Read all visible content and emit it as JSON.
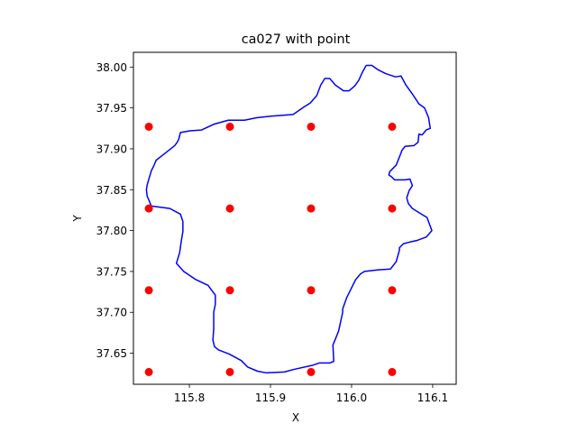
{
  "chart_data": {
    "type": "line",
    "title": "ca027 with point",
    "xlabel": "X",
    "ylabel": "Y",
    "xlim": [
      115.731,
      116.129
    ],
    "ylim": [
      37.612,
      38.018
    ],
    "xticks": [
      115.8,
      115.9,
      116.0,
      116.1
    ],
    "xtick_labels": [
      "115.8",
      "115.9",
      "116.0",
      "116.1"
    ],
    "yticks": [
      37.65,
      37.7,
      37.75,
      37.8,
      37.85,
      37.9,
      37.95,
      38.0
    ],
    "ytick_labels": [
      "37.65",
      "37.70",
      "37.75",
      "37.80",
      "37.85",
      "37.90",
      "37.95",
      "38.00"
    ],
    "grid": false,
    "series": [
      {
        "kind": "line",
        "color": "#0000ff",
        "x": [
          116.018,
          116.025,
          116.032,
          116.042,
          116.054,
          116.061,
          116.067,
          116.075,
          116.083,
          116.09,
          116.095,
          116.097,
          116.092,
          116.087,
          116.083,
          116.082,
          116.077,
          116.066,
          116.062,
          116.061,
          116.055,
          116.047,
          116.046,
          116.049,
          116.053,
          116.066,
          116.072,
          116.075,
          116.071,
          116.068,
          116.07,
          116.075,
          116.083,
          116.093,
          116.099,
          116.092,
          116.081,
          116.072,
          116.064,
          116.059,
          116.059,
          116.055,
          116.048,
          116.033,
          116.016,
          116.011,
          116.005,
          115.998,
          115.994,
          115.989,
          115.989,
          115.984,
          115.977,
          115.978,
          115.973,
          115.96,
          115.951,
          115.928,
          115.917,
          115.895,
          115.884,
          115.872,
          115.864,
          115.849,
          115.836,
          115.831,
          115.829,
          115.83,
          115.83,
          115.832,
          115.832,
          115.823,
          115.808,
          115.793,
          115.784,
          115.788,
          115.79,
          115.792,
          115.792,
          115.789,
          115.776,
          115.753,
          115.751,
          115.748,
          115.747,
          115.748,
          115.753,
          115.756,
          115.759,
          115.768,
          115.777,
          115.782,
          115.785,
          115.787,
          115.789,
          115.801,
          115.815,
          115.83,
          115.848,
          115.868,
          115.883,
          115.901,
          115.916,
          115.928,
          115.941,
          115.949,
          115.957,
          115.962,
          115.967,
          115.973,
          115.98,
          115.99,
          115.997,
          116.004,
          116.009,
          116.013,
          116.018
        ],
        "y": [
          38.002,
          38.002,
          37.997,
          37.992,
          37.988,
          37.989,
          37.978,
          37.967,
          37.955,
          37.95,
          37.938,
          37.925,
          37.923,
          37.917,
          37.918,
          37.908,
          37.904,
          37.903,
          37.898,
          37.895,
          37.88,
          37.872,
          37.868,
          37.866,
          37.862,
          37.862,
          37.863,
          37.855,
          37.849,
          37.84,
          37.833,
          37.827,
          37.822,
          37.816,
          37.8,
          37.792,
          37.788,
          37.786,
          37.784,
          37.779,
          37.776,
          37.762,
          37.753,
          37.752,
          37.75,
          37.747,
          37.74,
          37.726,
          37.718,
          37.704,
          37.7,
          37.677,
          37.66,
          37.64,
          37.638,
          37.638,
          37.635,
          37.63,
          37.627,
          37.626,
          37.628,
          37.633,
          37.641,
          37.649,
          37.654,
          37.658,
          37.666,
          37.68,
          37.7,
          37.71,
          37.721,
          37.733,
          37.74,
          37.75,
          37.76,
          37.773,
          37.787,
          37.799,
          37.811,
          37.82,
          37.827,
          37.83,
          37.835,
          37.842,
          37.85,
          37.856,
          37.873,
          37.879,
          37.886,
          37.893,
          37.9,
          37.904,
          37.908,
          37.912,
          37.92,
          37.922,
          37.923,
          37.93,
          37.935,
          37.935,
          37.938,
          37.94,
          37.941,
          37.942,
          37.951,
          37.956,
          37.965,
          37.978,
          37.986,
          37.986,
          37.978,
          37.971,
          37.971,
          37.977,
          37.984,
          37.993,
          38.002
        ]
      },
      {
        "kind": "scatter",
        "color": "#ff0000",
        "x": [
          115.75,
          115.85,
          115.95,
          116.05,
          115.75,
          115.85,
          115.95,
          116.05,
          115.75,
          115.85,
          115.95,
          116.05,
          115.75,
          115.85,
          115.95,
          116.05
        ],
        "y": [
          37.927,
          37.927,
          37.927,
          37.927,
          37.827,
          37.827,
          37.827,
          37.827,
          37.727,
          37.727,
          37.727,
          37.727,
          37.627,
          37.627,
          37.627,
          37.627
        ]
      }
    ]
  }
}
